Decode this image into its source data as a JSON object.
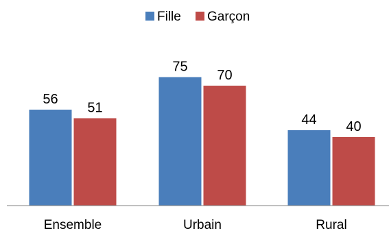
{
  "chart_data": {
    "type": "bar",
    "categories": [
      "Ensemble",
      "Urbain",
      "Rural"
    ],
    "series": [
      {
        "name": "Fille",
        "values": [
          56,
          75,
          44
        ],
        "color": "#4a7ebb"
      },
      {
        "name": "Garçon",
        "values": [
          51,
          70,
          40
        ],
        "color": "#be4b48"
      }
    ],
    "title": "",
    "xlabel": "",
    "ylabel": "",
    "ylim": [
      0,
      80
    ],
    "grid": false,
    "legend": "top-center",
    "data_labels": true
  }
}
